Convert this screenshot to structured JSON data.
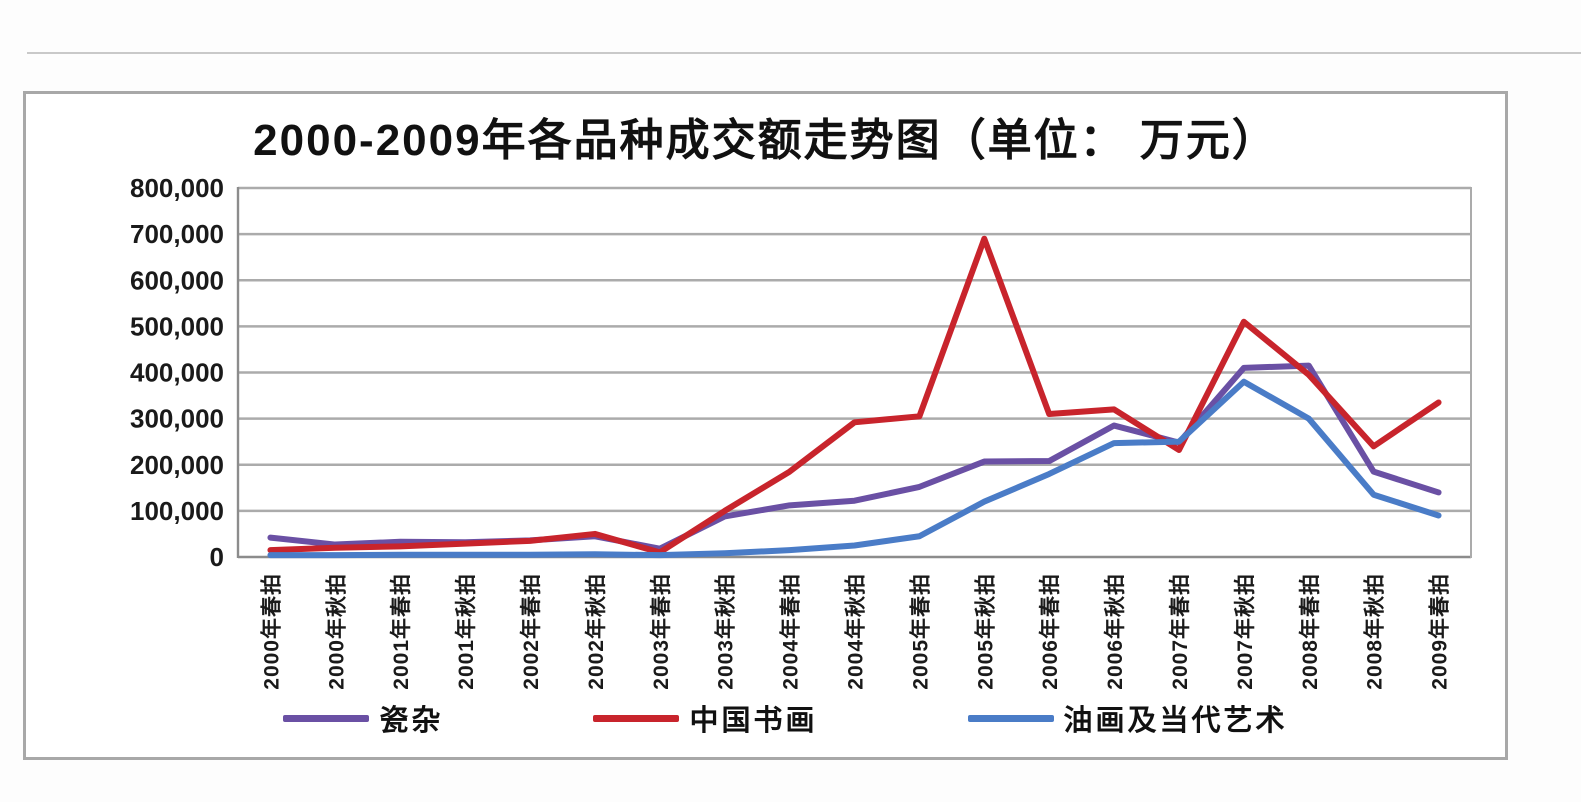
{
  "chart": {
    "unit_note": "单位: 万元"
  },
  "chart_data": {
    "type": "line",
    "title": "2000-2009年各品种成交额走势图（单位： 万元）",
    "xlabel": "",
    "ylabel": "",
    "ylim": [
      0,
      800000
    ],
    "ytick_step": 100000,
    "ytick_labels": [
      "0",
      "100,000",
      "200,000",
      "300,000",
      "400,000",
      "500,000",
      "600,000",
      "700,000",
      "800,000"
    ],
    "grid": true,
    "legend_position": "bottom",
    "categories": [
      "2000年春拍",
      "2000年秋拍",
      "2001年春拍",
      "2001年秋拍",
      "2002年春拍",
      "2002年秋拍",
      "2003年春拍",
      "2003年秋拍",
      "2004年春拍",
      "2004年秋拍",
      "2005年春拍",
      "2005年秋拍",
      "2006年春拍",
      "2006年秋拍",
      "2007年春拍",
      "2007年秋拍",
      "2008年春拍",
      "2008年秋拍",
      "2009年春拍"
    ],
    "series": [
      {
        "name": "瓷杂",
        "color": "#6a50a4",
        "values": [
          42000,
          27000,
          33000,
          32000,
          36000,
          45000,
          18000,
          88000,
          112000,
          122000,
          152000,
          207000,
          208000,
          285000,
          248000,
          410000,
          415000,
          185000,
          140000
        ]
      },
      {
        "name": "中国书画",
        "color": "#c8242c",
        "values": [
          15000,
          20000,
          23000,
          29000,
          35000,
          50000,
          10000,
          100000,
          185000,
          292000,
          305000,
          690000,
          310000,
          320000,
          232000,
          510000,
          395000,
          240000,
          335000
        ]
      },
      {
        "name": "油画及当代艺术",
        "color": "#4a7cc7",
        "values": [
          4000,
          4000,
          5000,
          5000,
          5000,
          6000,
          4000,
          8000,
          15000,
          25000,
          45000,
          120000,
          180000,
          247000,
          250000,
          380000,
          300000,
          135000,
          90000
        ]
      }
    ],
    "colors": {
      "gridline": "#ababab",
      "axis": "#8c8c8c",
      "tick_text": "#1a1a1a",
      "border": "#a8a8a8"
    }
  }
}
